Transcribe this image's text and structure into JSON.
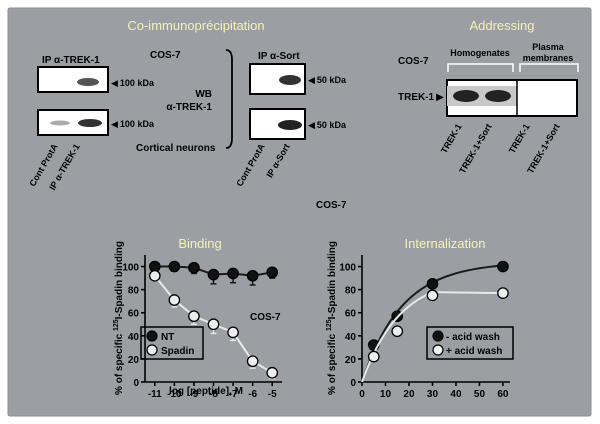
{
  "coip": {
    "title": "Co-immunoprécipitation",
    "cell_top": "COS-7",
    "cell_bottom": "Cortical neurons",
    "ip_trek": "IP α-TREK-1",
    "ip_sort": "IP α-Sort",
    "wb_line1": "WB",
    "wb_line2": "α-TREK-1",
    "kda_trek_top": "100 kDa",
    "kda_trek_bottom": "100 kDa",
    "kda_sort_top": "50 kDa",
    "kda_sort_bottom": "50 kDa",
    "lanes_left": [
      "Cont ProtA",
      "IP α-TREK-1"
    ],
    "lanes_right": [
      "Cont ProtA",
      "IP α-Sort"
    ]
  },
  "addressing": {
    "title": "Addressing",
    "cell": "COS-7",
    "group_homogenates": "Homogenates",
    "group_pm_line1": "Plasma",
    "group_pm_line2": "membranes",
    "row_label": "TREK-1",
    "lanes": [
      "TREK-1",
      "TREK-1+Sort",
      "TREK-1",
      "TREK-1+Sort"
    ]
  },
  "binding": {
    "title": "Binding",
    "cell": "COS-7",
    "ylabel_pre": "% of specific ",
    "ylabel_sup": "125",
    "ylabel_post": "I-Spadin binding",
    "xlabel": "log [peptide], M",
    "legend": [
      "NT",
      "Spadin"
    ]
  },
  "internalization": {
    "title": "Internalization",
    "cell": "COS-7",
    "ylabel_pre": "% of specific ",
    "ylabel_sup": "125",
    "ylabel_post": "I-Spadin binding",
    "legend": [
      "- acid wash",
      "+ acid wash"
    ]
  },
  "chart_data": [
    {
      "type": "scatter",
      "title": "Binding",
      "xlabel": "log [peptide], M",
      "ylabel": "% of specific 125I-Spadin binding",
      "xlim": [
        -11.5,
        -4.5
      ],
      "ylim": [
        0,
        110
      ],
      "x_ticks": [
        -11,
        -10,
        -9,
        -8,
        -7,
        -6,
        -5
      ],
      "y_ticks": [
        0,
        20,
        40,
        60,
        80,
        100
      ],
      "series": [
        {
          "name": "NT",
          "color": "#111111",
          "x": [
            -11,
            -10,
            -9,
            -8,
            -7,
            -6,
            -5
          ],
          "y": [
            100,
            100,
            99,
            93,
            94,
            92,
            95
          ],
          "err": [
            3,
            4,
            5,
            8,
            8,
            8,
            5
          ]
        },
        {
          "name": "Spadin",
          "color": "#eeeeee",
          "x": [
            -11,
            -10,
            -9,
            -8,
            -7,
            -6,
            -5
          ],
          "y": [
            92,
            71,
            57,
            50,
            43,
            18,
            8
          ],
          "err": [
            4,
            6,
            7,
            8,
            7,
            6,
            5
          ]
        }
      ],
      "legend_position": "bottom-left"
    },
    {
      "type": "scatter",
      "title": "Internalization",
      "xlabel": "",
      "ylabel": "% of specific 125I-Spadin binding",
      "xlim": [
        0,
        63
      ],
      "ylim": [
        0,
        110
      ],
      "x_ticks": [
        0,
        10,
        20,
        30,
        40,
        50,
        60
      ],
      "y_ticks": [
        0,
        20,
        40,
        60,
        80,
        100
      ],
      "series": [
        {
          "name": "- acid wash",
          "color": "#111111",
          "x": [
            5,
            15,
            30,
            60
          ],
          "y": [
            32,
            57,
            85,
            100
          ]
        },
        {
          "name": "+ acid wash",
          "color": "#eeeeee",
          "x": [
            5,
            15,
            30,
            60
          ],
          "y": [
            22,
            44,
            75,
            77
          ]
        }
      ],
      "legend_position": "bottom-right"
    }
  ]
}
